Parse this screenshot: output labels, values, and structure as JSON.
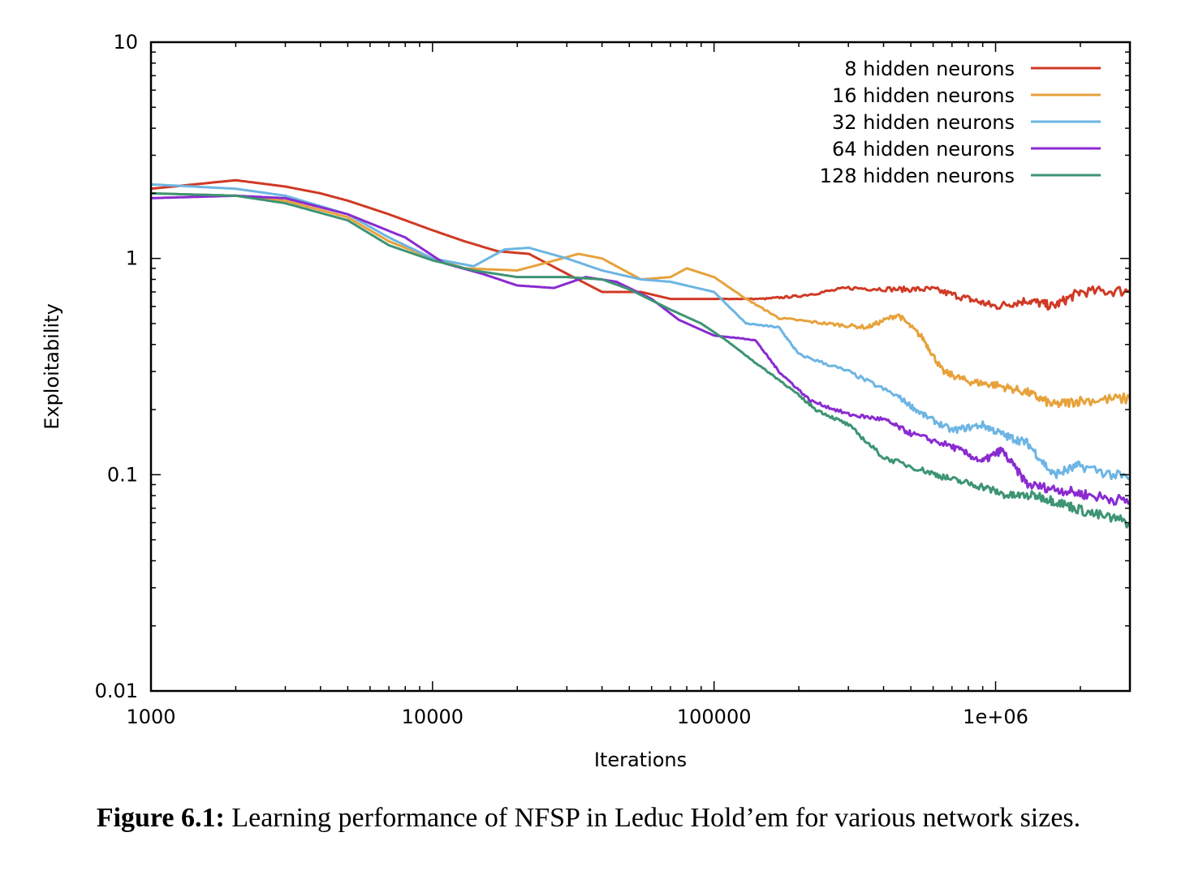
{
  "caption": {
    "label": "Figure 6.1:",
    "text": "Learning performance of NFSP in Leduc Hold’em for various network sizes."
  },
  "chart_data": {
    "type": "line",
    "title": "",
    "xlabel": "Iterations",
    "ylabel": "Exploitability",
    "xscale": "log",
    "yscale": "log",
    "xlim": [
      1000,
      3000000
    ],
    "ylim": [
      0.01,
      10
    ],
    "x_ticks": [
      1000,
      10000,
      100000,
      1000000
    ],
    "x_tick_labels": [
      "1000",
      "10000",
      "100000",
      "1e+06"
    ],
    "y_ticks": [
      0.01,
      0.1,
      1,
      10
    ],
    "y_tick_labels": [
      "0.01",
      "0.1",
      "1",
      "10"
    ],
    "grid": false,
    "legend_position": "top-right",
    "series": [
      {
        "name": "8 hidden neurons",
        "color": "#d03a25",
        "x": [
          1000,
          2000,
          3000,
          4000,
          5000,
          7000,
          10000,
          13000,
          17000,
          22000,
          30000,
          40000,
          55000,
          70000,
          100000,
          150000,
          200000,
          300000,
          450000,
          600000,
          800000,
          1000000,
          1300000,
          1600000,
          2000000,
          3000000
        ],
        "y": [
          2.1,
          2.3,
          2.15,
          2.0,
          1.85,
          1.6,
          1.35,
          1.2,
          1.08,
          1.05,
          0.85,
          0.7,
          0.7,
          0.65,
          0.65,
          0.65,
          0.67,
          0.73,
          0.72,
          0.72,
          0.65,
          0.6,
          0.64,
          0.6,
          0.7,
          0.71
        ]
      },
      {
        "name": "16 hidden neurons",
        "color": "#e7a23c",
        "x": [
          1000,
          2000,
          3000,
          5000,
          7000,
          10000,
          13000,
          20000,
          25000,
          33000,
          40000,
          55000,
          70000,
          80000,
          100000,
          130000,
          170000,
          250000,
          350000,
          450000,
          550000,
          650000,
          800000,
          1000000,
          1300000,
          1600000,
          2000000,
          3000000
        ],
        "y": [
          2.0,
          1.95,
          1.85,
          1.55,
          1.2,
          1.0,
          0.9,
          0.88,
          0.95,
          1.05,
          1.0,
          0.8,
          0.82,
          0.9,
          0.82,
          0.65,
          0.53,
          0.5,
          0.48,
          0.55,
          0.43,
          0.3,
          0.27,
          0.26,
          0.24,
          0.21,
          0.22,
          0.225
        ]
      },
      {
        "name": "32 hidden neurons",
        "color": "#6db5e3",
        "x": [
          1000,
          2000,
          3000,
          5000,
          7000,
          10000,
          14000,
          18000,
          22000,
          30000,
          40000,
          55000,
          70000,
          100000,
          130000,
          170000,
          200000,
          300000,
          450000,
          550000,
          700000,
          900000,
          1100000,
          1300000,
          1600000,
          2000000,
          3000000
        ],
        "y": [
          2.2,
          2.1,
          1.95,
          1.6,
          1.25,
          1.0,
          0.92,
          1.1,
          1.12,
          1.0,
          0.88,
          0.8,
          0.78,
          0.7,
          0.5,
          0.48,
          0.36,
          0.3,
          0.23,
          0.19,
          0.16,
          0.17,
          0.15,
          0.14,
          0.1,
          0.11,
          0.095
        ]
      },
      {
        "name": "64 hidden neurons",
        "color": "#8a2bd0",
        "x": [
          1000,
          2000,
          3000,
          5000,
          8000,
          11000,
          15000,
          20000,
          27000,
          35000,
          45000,
          60000,
          75000,
          100000,
          140000,
          170000,
          220000,
          300000,
          400000,
          500000,
          700000,
          900000,
          1050000,
          1300000,
          1700000,
          2200000,
          3000000
        ],
        "y": [
          1.9,
          1.95,
          1.9,
          1.6,
          1.25,
          0.95,
          0.85,
          0.75,
          0.73,
          0.82,
          0.78,
          0.65,
          0.52,
          0.44,
          0.42,
          0.3,
          0.22,
          0.19,
          0.18,
          0.155,
          0.135,
          0.115,
          0.13,
          0.09,
          0.085,
          0.08,
          0.075
        ]
      },
      {
        "name": "128 hidden neurons",
        "color": "#3d9473",
        "x": [
          1000,
          2000,
          3000,
          5000,
          7000,
          10000,
          14000,
          20000,
          30000,
          40000,
          50000,
          70000,
          90000,
          110000,
          140000,
          180000,
          230000,
          300000,
          400000,
          550000,
          700000,
          900000,
          1100000,
          1400000,
          1700000,
          2200000,
          3000000
        ],
        "y": [
          2.0,
          1.95,
          1.8,
          1.5,
          1.15,
          0.98,
          0.88,
          0.82,
          0.82,
          0.8,
          0.72,
          0.58,
          0.5,
          0.42,
          0.33,
          0.26,
          0.2,
          0.17,
          0.12,
          0.105,
          0.095,
          0.088,
          0.08,
          0.08,
          0.074,
          0.066,
          0.06
        ]
      }
    ]
  }
}
